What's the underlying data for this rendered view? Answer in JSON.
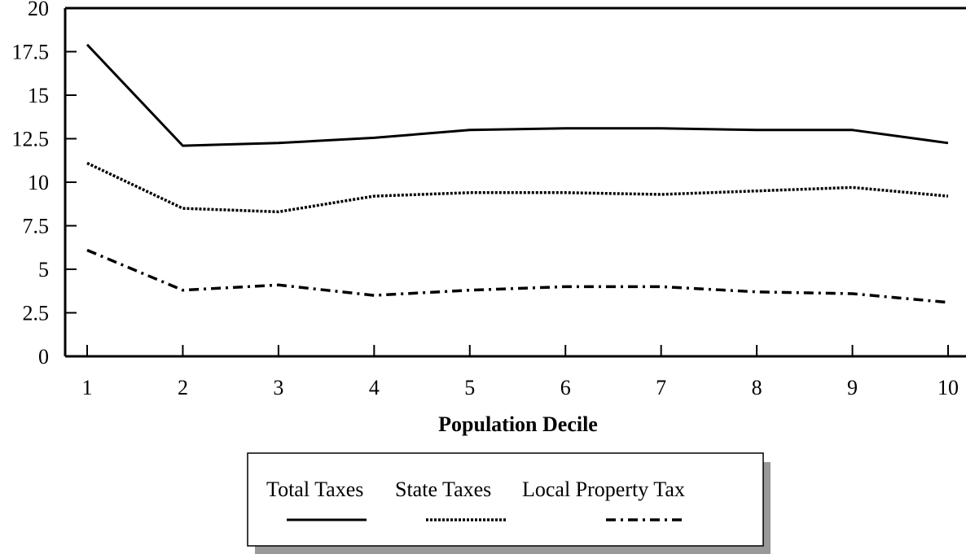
{
  "chart_data": {
    "type": "line",
    "title": "",
    "xlabel": "Population Decile",
    "ylabel": "",
    "x": [
      1,
      2,
      3,
      4,
      5,
      6,
      7,
      8,
      9,
      10
    ],
    "ylim": [
      0,
      20
    ],
    "yticks": [
      "0",
      "2.5",
      "5",
      "7.5",
      "10",
      "12.5",
      "15",
      "17.5",
      "20"
    ],
    "grid": false,
    "legend_position": "bottom-center",
    "series": [
      {
        "name": "Total Taxes",
        "style": "solid",
        "color": "#000000",
        "values": [
          17.9,
          12.1,
          12.25,
          12.55,
          13.0,
          13.1,
          13.1,
          13.0,
          13.0,
          12.25
        ]
      },
      {
        "name": "State Taxes",
        "style": "dotted",
        "color": "#000000",
        "values": [
          11.1,
          8.5,
          8.3,
          9.2,
          9.4,
          9.4,
          9.3,
          9.5,
          9.7,
          9.2
        ]
      },
      {
        "name": "Local Property Tax",
        "style": "dash-dot",
        "color": "#000000",
        "values": [
          6.1,
          3.8,
          4.1,
          3.5,
          3.8,
          4.0,
          4.0,
          3.7,
          3.6,
          3.1
        ]
      }
    ]
  }
}
